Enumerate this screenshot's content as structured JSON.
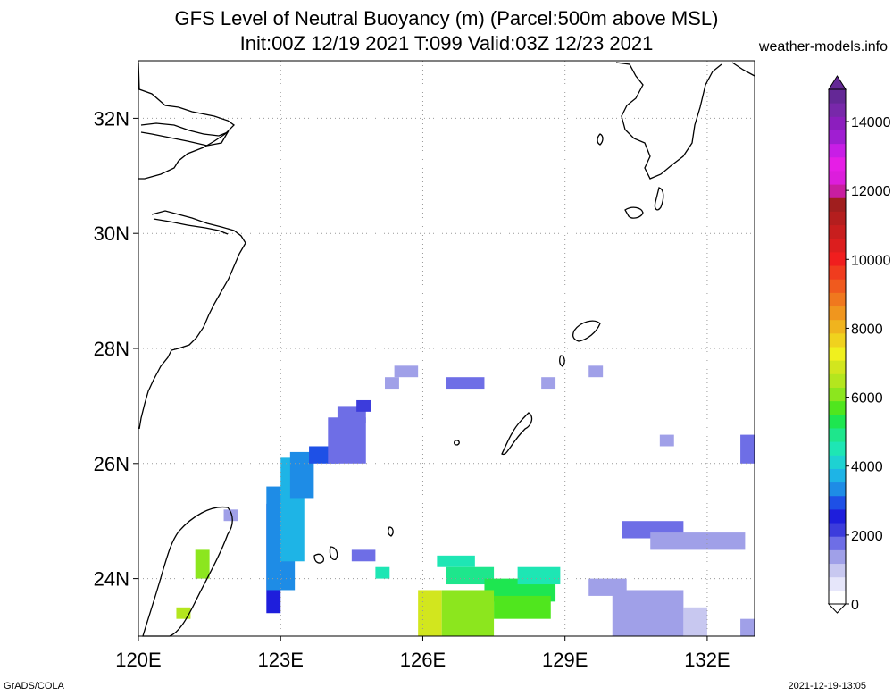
{
  "title": {
    "line1": "GFS Level of Neutral Buoyancy (m) (Parcel:500m above MSL)",
    "line2": "Init:00Z 12/19 2021 T:099 Valid:03Z 12/23 2021"
  },
  "source": "weather-models.info",
  "footer": {
    "credit": "GrADS/COLA",
    "timestamp": "2021-12-19-13:05"
  },
  "map": {
    "lon_labels": [
      "120E",
      "123E",
      "126E",
      "129E",
      "132E"
    ],
    "lat_labels": [
      "32N",
      "30N",
      "28N",
      "26N",
      "24N"
    ],
    "lon_range": [
      120,
      133
    ],
    "lat_range": [
      23,
      33
    ]
  },
  "colorbar": {
    "tick_labels": [
      "0",
      "2000",
      "4000",
      "6000",
      "8000",
      "10000",
      "12000",
      "14000"
    ],
    "colors": [
      "#ffffff",
      "#e6e6fa",
      "#c8c8f0",
      "#a0a0e8",
      "#6e6ee6",
      "#3c3cdc",
      "#1e1edc",
      "#1e50e6",
      "#1e8ce6",
      "#1eb4e6",
      "#1ed2d2",
      "#1ee6b4",
      "#1ee68c",
      "#1ee650",
      "#50e61e",
      "#8ce61e",
      "#b4e61e",
      "#d2e61e",
      "#f0f01e",
      "#f0d21e",
      "#f0b41e",
      "#f0961e",
      "#f0781e",
      "#f05a1e",
      "#f03c1e",
      "#f01e1e",
      "#dc1e1e",
      "#c81e1e",
      "#b41e1e",
      "#a01e1e",
      "#c81ea0",
      "#dc1edc",
      "#e61ee6",
      "#c81ee6",
      "#a01ed2",
      "#8c1ebe",
      "#7828aa",
      "#642896"
    ]
  },
  "buoyancy_cells": [
    {
      "lon": 122.7,
      "lat": 23.4,
      "w": 0.3,
      "h": 1.9,
      "v": 2600
    },
    {
      "lon": 122.7,
      "lat": 23.8,
      "w": 0.6,
      "h": 1.8,
      "v": 3200
    },
    {
      "lon": 123.0,
      "lat": 24.3,
      "w": 0.5,
      "h": 1.8,
      "v": 3500
    },
    {
      "lon": 123.2,
      "lat": 25.4,
      "w": 0.5,
      "h": 0.8,
      "v": 3100
    },
    {
      "lon": 123.6,
      "lat": 26.0,
      "w": 0.6,
      "h": 0.3,
      "v": 2900
    },
    {
      "lon": 124.0,
      "lat": 26.0,
      "w": 0.8,
      "h": 0.8,
      "v": 1700
    },
    {
      "lon": 124.2,
      "lat": 26.7,
      "w": 0.6,
      "h": 0.3,
      "v": 1500
    },
    {
      "lon": 124.6,
      "lat": 26.9,
      "w": 0.3,
      "h": 0.2,
      "v": 2100
    },
    {
      "lon": 121.8,
      "lat": 25.0,
      "w": 0.3,
      "h": 0.2,
      "v": 1400
    },
    {
      "lon": 121.2,
      "lat": 24.0,
      "w": 0.3,
      "h": 0.5,
      "v": 6200
    },
    {
      "lon": 120.8,
      "lat": 23.3,
      "w": 0.3,
      "h": 0.2,
      "v": 6500
    },
    {
      "lon": 124.5,
      "lat": 24.3,
      "w": 0.5,
      "h": 0.2,
      "v": 1500
    },
    {
      "lon": 125.0,
      "lat": 24.0,
      "w": 0.3,
      "h": 0.2,
      "v": 4600
    },
    {
      "lon": 125.2,
      "lat": 27.3,
      "w": 0.3,
      "h": 0.2,
      "v": 1200
    },
    {
      "lon": 125.4,
      "lat": 27.5,
      "w": 0.5,
      "h": 0.2,
      "v": 1200
    },
    {
      "lon": 126.5,
      "lat": 27.3,
      "w": 0.8,
      "h": 0.2,
      "v": 1600
    },
    {
      "lon": 128.5,
      "lat": 27.3,
      "w": 0.3,
      "h": 0.2,
      "v": 1300
    },
    {
      "lon": 129.5,
      "lat": 27.5,
      "w": 0.3,
      "h": 0.2,
      "v": 1300
    },
    {
      "lon": 131.0,
      "lat": 26.3,
      "w": 0.3,
      "h": 0.2,
      "v": 1300
    },
    {
      "lon": 132.7,
      "lat": 26.0,
      "w": 0.3,
      "h": 0.5,
      "v": 1500
    },
    {
      "lon": 126.3,
      "lat": 24.2,
      "w": 0.8,
      "h": 0.2,
      "v": 4500
    },
    {
      "lon": 126.5,
      "lat": 23.9,
      "w": 1.0,
      "h": 0.3,
      "v": 4800
    },
    {
      "lon": 127.3,
      "lat": 23.6,
      "w": 1.5,
      "h": 0.4,
      "v": 5200
    },
    {
      "lon": 128.0,
      "lat": 23.9,
      "w": 0.9,
      "h": 0.3,
      "v": 4600
    },
    {
      "lon": 125.9,
      "lat": 23.0,
      "w": 0.5,
      "h": 0.8,
      "v": 6700
    },
    {
      "lon": 126.4,
      "lat": 23.0,
      "w": 1.1,
      "h": 0.8,
      "v": 6000
    },
    {
      "lon": 127.5,
      "lat": 23.3,
      "w": 1.2,
      "h": 0.4,
      "v": 5500
    },
    {
      "lon": 130.2,
      "lat": 24.7,
      "w": 1.3,
      "h": 0.3,
      "v": 1500
    },
    {
      "lon": 130.8,
      "lat": 24.5,
      "w": 2.0,
      "h": 0.3,
      "v": 1400
    },
    {
      "lon": 129.5,
      "lat": 23.7,
      "w": 0.8,
      "h": 0.3,
      "v": 1300
    },
    {
      "lon": 130.0,
      "lat": 23.0,
      "w": 1.5,
      "h": 0.8,
      "v": 1100
    },
    {
      "lon": 131.5,
      "lat": 23.0,
      "w": 0.5,
      "h": 0.5,
      "v": 900
    },
    {
      "lon": 132.7,
      "lat": 23.0,
      "w": 0.3,
      "h": 0.3,
      "v": 1300
    }
  ]
}
